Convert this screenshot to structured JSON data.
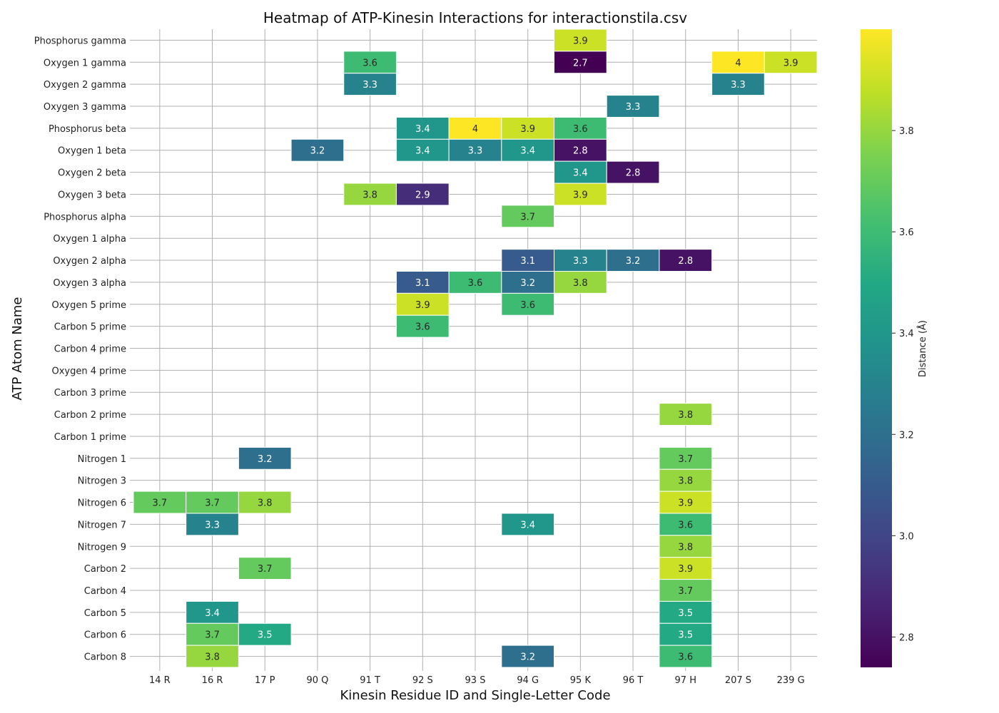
{
  "chart_data": {
    "type": "heatmap",
    "title": "Heatmap of ATP-Kinesin Interactions for interactionstila.csv",
    "xlabel": "Kinesin Residue ID and Single-Letter Code",
    "ylabel": "ATP Atom Name",
    "colorbar_label": "Distance (Å)",
    "colormap": "viridis",
    "value_range": [
      2.74,
      4.0
    ],
    "colorbar_ticks": [
      2.8,
      3.0,
      3.2,
      3.4,
      3.6,
      3.8
    ],
    "grid": true,
    "columns": [
      "14 R",
      "16 R",
      "17 P",
      "90 Q",
      "91 T",
      "92 S",
      "93 S",
      "94 G",
      "95 K",
      "96 T",
      "97 H",
      "207 S",
      "239 G"
    ],
    "rows": [
      "Phosphorus gamma",
      "Oxygen 1 gamma",
      "Oxygen 2 gamma",
      "Oxygen 3 gamma",
      "Phosphorus beta",
      "Oxygen 1 beta",
      "Oxygen 2 beta",
      "Oxygen 3 beta",
      "Phosphorus alpha",
      "Oxygen 1 alpha",
      "Oxygen 2 alpha",
      "Oxygen 3 alpha",
      "Oxygen 5 prime",
      "Carbon 5 prime",
      "Carbon 4 prime",
      "Oxygen 4 prime",
      "Carbon 3 prime",
      "Carbon 2 prime",
      "Carbon 1 prime",
      "Nitrogen 1",
      "Nitrogen 3",
      "Nitrogen 6",
      "Nitrogen 7",
      "Nitrogen 9",
      "Carbon 2",
      "Carbon 4",
      "Carbon 5",
      "Carbon 6",
      "Carbon 8"
    ],
    "cells": [
      {
        "row": "Phosphorus gamma",
        "col": "95 K",
        "value": 3.9
      },
      {
        "row": "Oxygen 1 gamma",
        "col": "91 T",
        "value": 3.6
      },
      {
        "row": "Oxygen 1 gamma",
        "col": "95 K",
        "value": 2.7
      },
      {
        "row": "Oxygen 1 gamma",
        "col": "207 S",
        "value": 4
      },
      {
        "row": "Oxygen 1 gamma",
        "col": "239 G",
        "value": 3.9
      },
      {
        "row": "Oxygen 2 gamma",
        "col": "91 T",
        "value": 3.3
      },
      {
        "row": "Oxygen 2 gamma",
        "col": "207 S",
        "value": 3.3
      },
      {
        "row": "Oxygen 3 gamma",
        "col": "96 T",
        "value": 3.3
      },
      {
        "row": "Phosphorus beta",
        "col": "92 S",
        "value": 3.4
      },
      {
        "row": "Phosphorus beta",
        "col": "93 S",
        "value": 4
      },
      {
        "row": "Phosphorus beta",
        "col": "94 G",
        "value": 3.9
      },
      {
        "row": "Phosphorus beta",
        "col": "95 K",
        "value": 3.6
      },
      {
        "row": "Oxygen 1 beta",
        "col": "90 Q",
        "value": 3.2
      },
      {
        "row": "Oxygen 1 beta",
        "col": "92 S",
        "value": 3.4
      },
      {
        "row": "Oxygen 1 beta",
        "col": "93 S",
        "value": 3.3
      },
      {
        "row": "Oxygen 1 beta",
        "col": "94 G",
        "value": 3.4
      },
      {
        "row": "Oxygen 1 beta",
        "col": "95 K",
        "value": 2.8
      },
      {
        "row": "Oxygen 2 beta",
        "col": "95 K",
        "value": 3.4
      },
      {
        "row": "Oxygen 2 beta",
        "col": "96 T",
        "value": 2.8
      },
      {
        "row": "Oxygen 3 beta",
        "col": "91 T",
        "value": 3.8
      },
      {
        "row": "Oxygen 3 beta",
        "col": "92 S",
        "value": 2.9
      },
      {
        "row": "Oxygen 3 beta",
        "col": "95 K",
        "value": 3.9
      },
      {
        "row": "Phosphorus alpha",
        "col": "94 G",
        "value": 3.7
      },
      {
        "row": "Oxygen 2 alpha",
        "col": "94 G",
        "value": 3.1
      },
      {
        "row": "Oxygen 2 alpha",
        "col": "95 K",
        "value": 3.3
      },
      {
        "row": "Oxygen 2 alpha",
        "col": "96 T",
        "value": 3.2
      },
      {
        "row": "Oxygen 2 alpha",
        "col": "97 H",
        "value": 2.8
      },
      {
        "row": "Oxygen 3 alpha",
        "col": "92 S",
        "value": 3.1
      },
      {
        "row": "Oxygen 3 alpha",
        "col": "93 S",
        "value": 3.6
      },
      {
        "row": "Oxygen 3 alpha",
        "col": "94 G",
        "value": 3.2
      },
      {
        "row": "Oxygen 3 alpha",
        "col": "95 K",
        "value": 3.8
      },
      {
        "row": "Oxygen 5 prime",
        "col": "92 S",
        "value": 3.9
      },
      {
        "row": "Oxygen 5 prime",
        "col": "94 G",
        "value": 3.6
      },
      {
        "row": "Carbon 5 prime",
        "col": "92 S",
        "value": 3.6
      },
      {
        "row": "Carbon 2 prime",
        "col": "97 H",
        "value": 3.8
      },
      {
        "row": "Nitrogen 1",
        "col": "17 P",
        "value": 3.2
      },
      {
        "row": "Nitrogen 1",
        "col": "97 H",
        "value": 3.7
      },
      {
        "row": "Nitrogen 3",
        "col": "97 H",
        "value": 3.8
      },
      {
        "row": "Nitrogen 6",
        "col": "14 R",
        "value": 3.7
      },
      {
        "row": "Nitrogen 6",
        "col": "16 R",
        "value": 3.7
      },
      {
        "row": "Nitrogen 6",
        "col": "17 P",
        "value": 3.8
      },
      {
        "row": "Nitrogen 6",
        "col": "97 H",
        "value": 3.9
      },
      {
        "row": "Nitrogen 7",
        "col": "16 R",
        "value": 3.3
      },
      {
        "row": "Nitrogen 7",
        "col": "94 G",
        "value": 3.4
      },
      {
        "row": "Nitrogen 7",
        "col": "97 H",
        "value": 3.6
      },
      {
        "row": "Nitrogen 9",
        "col": "97 H",
        "value": 3.8
      },
      {
        "row": "Carbon 2",
        "col": "17 P",
        "value": 3.7
      },
      {
        "row": "Carbon 2",
        "col": "97 H",
        "value": 3.9
      },
      {
        "row": "Carbon 4",
        "col": "97 H",
        "value": 3.7
      },
      {
        "row": "Carbon 5",
        "col": "16 R",
        "value": 3.4
      },
      {
        "row": "Carbon 5",
        "col": "97 H",
        "value": 3.5
      },
      {
        "row": "Carbon 6",
        "col": "16 R",
        "value": 3.7
      },
      {
        "row": "Carbon 6",
        "col": "17 P",
        "value": 3.5
      },
      {
        "row": "Carbon 6",
        "col": "97 H",
        "value": 3.5
      },
      {
        "row": "Carbon 8",
        "col": "16 R",
        "value": 3.8
      },
      {
        "row": "Carbon 8",
        "col": "94 G",
        "value": 3.2
      },
      {
        "row": "Carbon 8",
        "col": "97 H",
        "value": 3.6
      }
    ]
  }
}
